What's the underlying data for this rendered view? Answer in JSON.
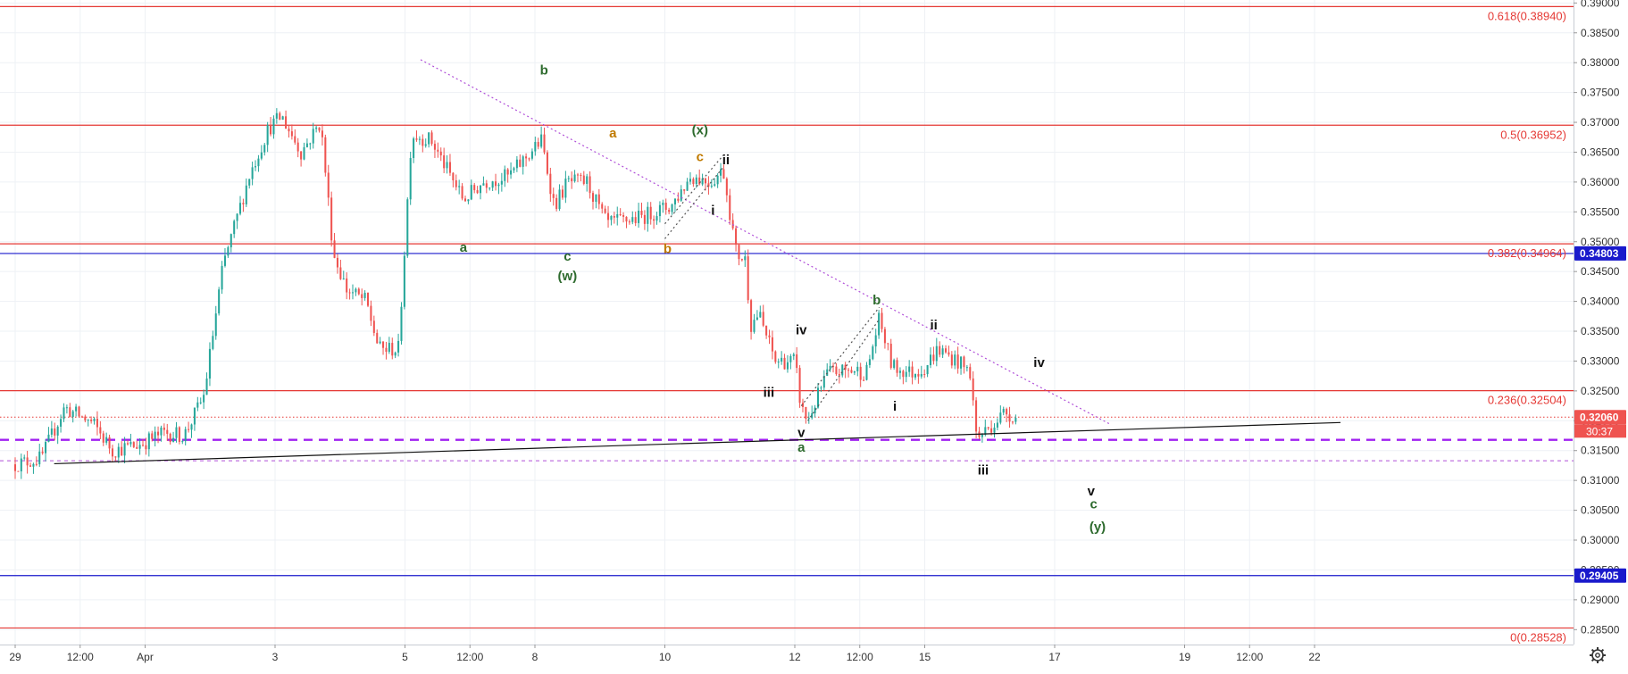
{
  "colors": {
    "bull": "#26a69a",
    "bear": "#ef5350",
    "fib": "#e53935",
    "blue": "#1a1acc",
    "purple": "#9c27b0",
    "trend": "#111111",
    "grid": "#eef1f5",
    "label_green": "#2e6b2e",
    "label_orange": "#c07a00",
    "label_black": "#111111"
  },
  "chart_data": {
    "type": "candlestick",
    "title": "",
    "xlabel": "",
    "ylabel": "",
    "ylim": [
      0.2825,
      0.3905
    ],
    "grid": true,
    "y_ticks": [
      0.285,
      0.29,
      0.295,
      0.3,
      0.305,
      0.31,
      0.315,
      0.32,
      0.325,
      0.33,
      0.335,
      0.34,
      0.345,
      0.35,
      0.355,
      0.36,
      0.365,
      0.37,
      0.375,
      0.38,
      0.385,
      0.39
    ],
    "x_ticks": [
      {
        "t": 0,
        "label": "29"
      },
      {
        "t": 0.5,
        "label": "12:00"
      },
      {
        "t": 1,
        "label": "Apr"
      },
      {
        "t": 2,
        "label": "3"
      },
      {
        "t": 3,
        "label": "5"
      },
      {
        "t": 3.5,
        "label": "12:00"
      },
      {
        "t": 4,
        "label": "8"
      },
      {
        "t": 5,
        "label": "10"
      },
      {
        "t": 6,
        "label": "12"
      },
      {
        "t": 6.5,
        "label": "12:00"
      },
      {
        "t": 7,
        "label": "15"
      },
      {
        "t": 8,
        "label": "17"
      },
      {
        "t": 9,
        "label": "19"
      },
      {
        "t": 9.5,
        "label": "12:00"
      },
      {
        "t": 10,
        "label": "22"
      }
    ],
    "price_path": [
      [
        0.0,
        0.3127
      ],
      [
        0.2,
        0.3137
      ],
      [
        0.38,
        0.3222
      ],
      [
        0.6,
        0.3195
      ],
      [
        0.75,
        0.315
      ],
      [
        0.95,
        0.316
      ],
      [
        1.15,
        0.318
      ],
      [
        1.3,
        0.3175
      ],
      [
        1.45,
        0.324
      ],
      [
        1.6,
        0.346
      ],
      [
        1.8,
        0.361
      ],
      [
        1.95,
        0.369
      ],
      [
        2.05,
        0.371
      ],
      [
        2.2,
        0.365
      ],
      [
        2.35,
        0.37
      ],
      [
        2.45,
        0.348
      ],
      [
        2.55,
        0.342
      ],
      [
        2.7,
        0.34
      ],
      [
        2.8,
        0.332
      ],
      [
        2.95,
        0.332
      ],
      [
        3.05,
        0.368
      ],
      [
        3.2,
        0.367
      ],
      [
        3.45,
        0.357
      ],
      [
        3.6,
        0.36
      ],
      [
        3.8,
        0.361
      ],
      [
        4.05,
        0.367
      ],
      [
        4.15,
        0.356
      ],
      [
        4.25,
        0.36
      ],
      [
        4.4,
        0.36
      ],
      [
        4.55,
        0.353
      ],
      [
        4.8,
        0.354
      ],
      [
        5.05,
        0.356
      ],
      [
        5.2,
        0.361
      ],
      [
        5.35,
        0.36
      ],
      [
        5.45,
        0.362
      ],
      [
        5.55,
        0.348
      ],
      [
        5.62,
        0.347
      ],
      [
        5.66,
        0.336
      ],
      [
        5.72,
        0.338
      ],
      [
        5.85,
        0.33
      ],
      [
        6.0,
        0.33
      ],
      [
        6.05,
        0.322
      ],
      [
        6.1,
        0.32
      ],
      [
        6.25,
        0.328
      ],
      [
        6.45,
        0.3285
      ],
      [
        6.55,
        0.328
      ],
      [
        6.65,
        0.337
      ],
      [
        6.75,
        0.329
      ],
      [
        6.9,
        0.328
      ],
      [
        7.0,
        0.329
      ],
      [
        7.1,
        0.332
      ],
      [
        7.25,
        0.33
      ],
      [
        7.35,
        0.328
      ],
      [
        7.4,
        0.317
      ],
      [
        7.55,
        0.32
      ],
      [
        7.62,
        0.3215
      ],
      [
        7.7,
        0.3206
      ]
    ],
    "candle_count": 330,
    "h_lines": [
      {
        "price": 0.3894,
        "label": "0.618(0.38940)",
        "color": "#e53935",
        "style": "solid"
      },
      {
        "price": 0.36952,
        "label": "0.5(0.36952)",
        "color": "#e53935",
        "style": "solid"
      },
      {
        "price": 0.34964,
        "label": "0.382(0.34964)",
        "color": "#e53935",
        "style": "solid"
      },
      {
        "price": 0.32504,
        "label": "0.236(0.32504)",
        "color": "#e53935",
        "style": "solid"
      },
      {
        "price": 0.28528,
        "label": "0(0.28528)",
        "color": "#e53935",
        "style": "solid"
      },
      {
        "price": 0.34803,
        "label": "",
        "color": "#1a1acc",
        "style": "solid"
      },
      {
        "price": 0.29405,
        "label": "",
        "color": "#1a1acc",
        "style": "solid"
      },
      {
        "price": 0.3168,
        "label": "",
        "color": "#a020f0",
        "style": "dash-thick"
      },
      {
        "price": 0.3133,
        "label": "",
        "color": "#b04fd8",
        "style": "dash-thin"
      },
      {
        "price": 0.3206,
        "label": "",
        "color": "#e53935",
        "style": "dot"
      }
    ],
    "trend_lines": [
      {
        "t1": 0.3,
        "p1": 0.3128,
        "t2": 10.2,
        "p2": 0.3197,
        "color": "#111111",
        "style": "solid"
      },
      {
        "t1": 3.12,
        "p1": 0.3805,
        "t2": 8.42,
        "p2": 0.3195,
        "color": "#b04fd8",
        "style": "dot"
      },
      {
        "t1": 5.0,
        "p1": 0.3505,
        "t2": 5.45,
        "p2": 0.3625,
        "color": "#555555",
        "style": "dot"
      },
      {
        "t1": 5.0,
        "p1": 0.353,
        "t2": 5.45,
        "p2": 0.3645,
        "color": "#555555",
        "style": "dot"
      },
      {
        "t1": 6.1,
        "p1": 0.32,
        "t2": 6.65,
        "p2": 0.337,
        "color": "#555555",
        "style": "dot"
      },
      {
        "t1": 6.05,
        "p1": 0.3225,
        "t2": 6.65,
        "p2": 0.339,
        "color": "#555555",
        "style": "dot"
      }
    ],
    "price_badges": [
      {
        "price": 0.34803,
        "label": "0.34803",
        "bg": "#1a1acc",
        "fg": "#ffffff"
      },
      {
        "price": 0.3206,
        "label": "0.32060",
        "bg": "#ef5350",
        "fg": "#ffffff"
      },
      {
        "price": 0.29405,
        "label": "0.29405",
        "bg": "#1a1acc",
        "fg": "#ffffff"
      }
    ],
    "countdown": "30:37",
    "wave_labels": [
      {
        "text": "b",
        "t": 4.07,
        "p": 0.378,
        "color": "#2e6b2e"
      },
      {
        "text": "a",
        "t": 4.6,
        "p": 0.3675,
        "color": "#c07a00"
      },
      {
        "text": "(x)",
        "t": 5.27,
        "p": 0.368,
        "color": "#2e6b2e"
      },
      {
        "text": "c",
        "t": 5.27,
        "p": 0.3635,
        "color": "#c07a00"
      },
      {
        "text": "ii",
        "t": 5.47,
        "p": 0.363,
        "color": "#111111"
      },
      {
        "text": "i",
        "t": 5.37,
        "p": 0.3545,
        "color": "#111111"
      },
      {
        "text": "a",
        "t": 3.45,
        "p": 0.3483,
        "color": "#2e6b2e"
      },
      {
        "text": "c",
        "t": 4.25,
        "p": 0.3468,
        "color": "#2e6b2e"
      },
      {
        "text": "(w)",
        "t": 4.25,
        "p": 0.3435,
        "color": "#2e6b2e"
      },
      {
        "text": "b",
        "t": 5.02,
        "p": 0.3481,
        "color": "#c07a00"
      },
      {
        "text": "iv",
        "t": 6.05,
        "p": 0.3345,
        "color": "#111111"
      },
      {
        "text": "b",
        "t": 6.63,
        "p": 0.3395,
        "color": "#2e6b2e"
      },
      {
        "text": "iii",
        "t": 5.8,
        "p": 0.324,
        "color": "#111111"
      },
      {
        "text": "v",
        "t": 6.05,
        "p": 0.3173,
        "color": "#111111"
      },
      {
        "text": "a",
        "t": 6.05,
        "p": 0.3148,
        "color": "#2e6b2e"
      },
      {
        "text": "i",
        "t": 6.77,
        "p": 0.3217,
        "color": "#111111"
      },
      {
        "text": "ii",
        "t": 7.07,
        "p": 0.3353,
        "color": "#111111"
      },
      {
        "text": "iv",
        "t": 7.88,
        "p": 0.329,
        "color": "#111111"
      },
      {
        "text": "iii",
        "t": 7.45,
        "p": 0.311,
        "color": "#111111"
      },
      {
        "text": "v",
        "t": 8.28,
        "p": 0.3075,
        "color": "#111111"
      },
      {
        "text": "c",
        "t": 8.3,
        "p": 0.3053,
        "color": "#2e6b2e"
      },
      {
        "text": "(y)",
        "t": 8.33,
        "p": 0.3015,
        "color": "#2e6b2e"
      }
    ]
  }
}
